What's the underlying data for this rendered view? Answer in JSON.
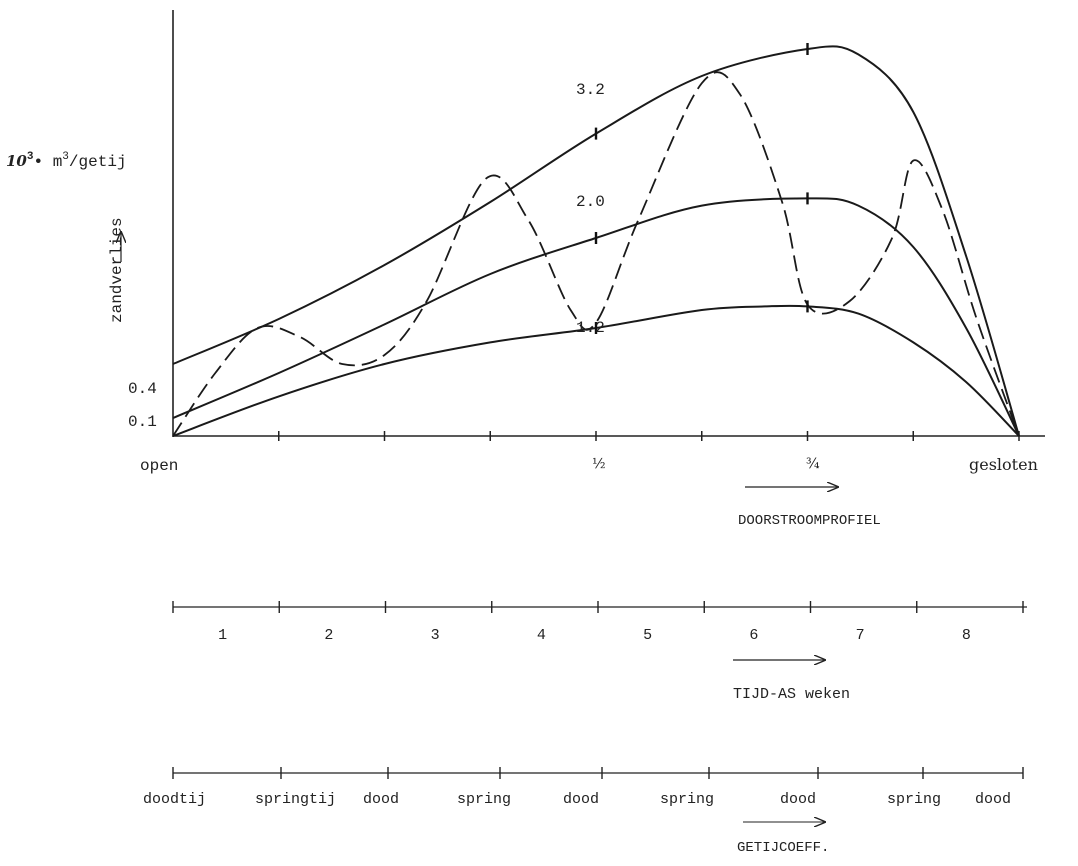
{
  "chart_data": {
    "type": "line",
    "ylabel_unit": "10³ m³/getij",
    "ylabel_unit_parts": {
      "prefix": "10",
      "prefix_sup": "3",
      "dot": "•",
      "unit": " m",
      "unit_sup": "3",
      "suffix": "/getij"
    },
    "ylabel": "zandverlies",
    "y_ticks": [
      {
        "label": "0.4",
        "value": 0.4
      },
      {
        "label": "0.1",
        "value": 0.1
      }
    ],
    "x_axis": {
      "label": "DOORSTROOMPROFIEL",
      "ticks": [
        "open",
        "½",
        "¾",
        "gesloten"
      ],
      "half_label": "½",
      "three_quarter_label": "¾"
    },
    "series": [
      {
        "name": "3.2",
        "style": "solid",
        "points": [
          [
            0,
            0.4
          ],
          [
            0.125,
            0.65
          ],
          [
            0.25,
            0.95
          ],
          [
            0.375,
            1.3
          ],
          [
            0.5,
            1.68
          ],
          [
            0.625,
            2.0
          ],
          [
            0.75,
            2.15
          ],
          [
            0.81,
            2.12
          ],
          [
            0.875,
            1.8
          ],
          [
            0.9375,
            1.0
          ],
          [
            1,
            0
          ]
        ]
      },
      {
        "name": "2.0",
        "style": "solid",
        "points": [
          [
            0,
            0.1
          ],
          [
            0.125,
            0.35
          ],
          [
            0.25,
            0.62
          ],
          [
            0.375,
            0.9
          ],
          [
            0.5,
            1.1
          ],
          [
            0.625,
            1.28
          ],
          [
            0.75,
            1.32
          ],
          [
            0.81,
            1.28
          ],
          [
            0.875,
            1.05
          ],
          [
            0.9375,
            0.6
          ],
          [
            1,
            0
          ]
        ]
      },
      {
        "name": "1.2",
        "style": "solid",
        "points": [
          [
            0,
            0
          ],
          [
            0.125,
            0.22
          ],
          [
            0.25,
            0.4
          ],
          [
            0.375,
            0.52
          ],
          [
            0.5,
            0.6
          ],
          [
            0.625,
            0.7
          ],
          [
            0.7,
            0.72
          ],
          [
            0.75,
            0.72
          ],
          [
            0.81,
            0.68
          ],
          [
            0.875,
            0.52
          ],
          [
            0.9375,
            0.3
          ],
          [
            1,
            0
          ]
        ]
      },
      {
        "name": "",
        "style": "dashed",
        "points": [
          [
            0,
            0
          ],
          [
            0.05,
            0.35
          ],
          [
            0.1,
            0.6
          ],
          [
            0.15,
            0.55
          ],
          [
            0.2,
            0.4
          ],
          [
            0.25,
            0.45
          ],
          [
            0.3,
            0.75
          ],
          [
            0.37,
            1.43
          ],
          [
            0.42,
            1.2
          ],
          [
            0.47,
            0.7
          ],
          [
            0.5,
            0.63
          ],
          [
            0.55,
            1.2
          ],
          [
            0.625,
            1.96
          ],
          [
            0.67,
            1.9
          ],
          [
            0.72,
            1.3
          ],
          [
            0.75,
            0.73
          ],
          [
            0.8,
            0.75
          ],
          [
            0.85,
            1.1
          ],
          [
            0.875,
            1.53
          ],
          [
            0.91,
            1.25
          ],
          [
            0.95,
            0.65
          ],
          [
            1,
            0
          ]
        ]
      }
    ],
    "time_axis": {
      "label": "TIJD-AS weken",
      "weeks": [
        "1",
        "2",
        "3",
        "4",
        "5",
        "6",
        "7",
        "8"
      ]
    },
    "tide_axis": {
      "label": "GETIJCOEFF.",
      "labels": [
        "doodtij",
        "springtij",
        "dood",
        "spring",
        "dood",
        "spring",
        "dood",
        "spring",
        "dood"
      ]
    }
  }
}
